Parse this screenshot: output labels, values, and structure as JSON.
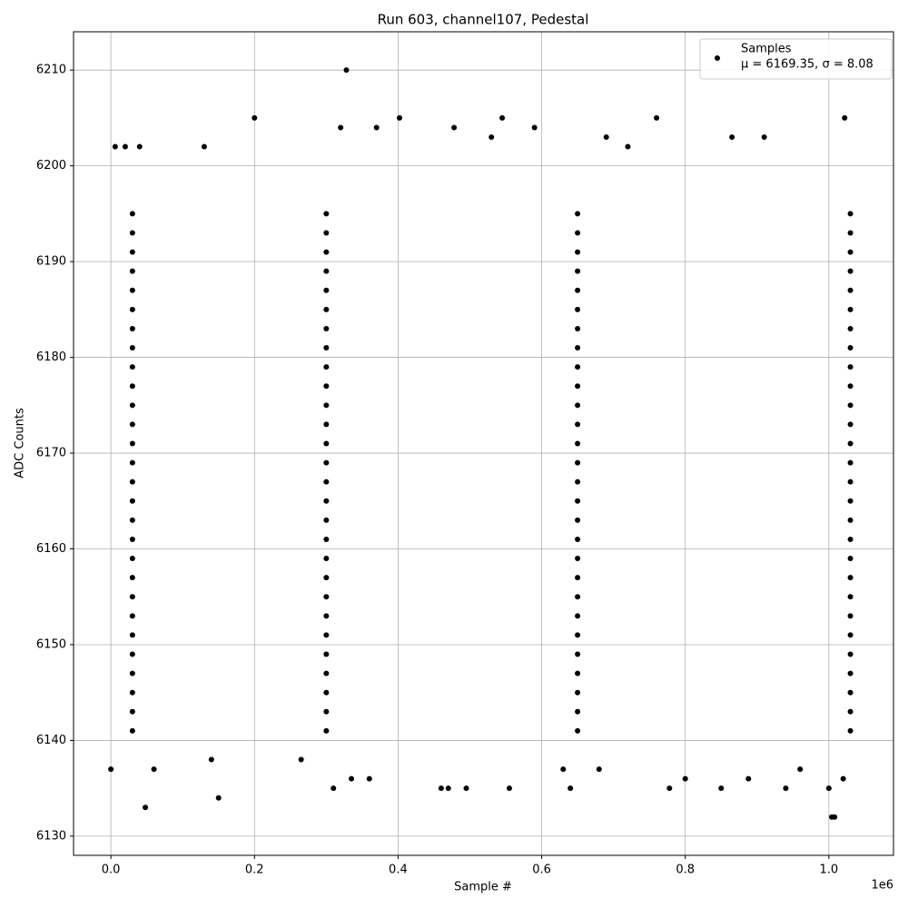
{
  "chart_data": {
    "type": "scatter",
    "title": "Run 603, channel107, Pedestal",
    "x_label": "Sample #",
    "y_label": "ADC Counts",
    "x_offset_label": "1e6",
    "xlim": [
      -52000,
      1090000
    ],
    "ylim": [
      6128,
      6214
    ],
    "xticks": [
      {
        "value": 0,
        "label": "0.0"
      },
      {
        "value": 200000,
        "label": "0.2"
      },
      {
        "value": 400000,
        "label": "0.4"
      },
      {
        "value": 600000,
        "label": "0.6"
      },
      {
        "value": 800000,
        "label": "0.8"
      },
      {
        "value": 1000000,
        "label": "1.0"
      }
    ],
    "yticks": [
      6130,
      6140,
      6150,
      6160,
      6170,
      6180,
      6190,
      6200,
      6210
    ],
    "grid": true,
    "legend": "upper right",
    "legend_note": "μ = 6169.35, σ = 8.08",
    "series": [
      {
        "name": "Samples",
        "color": "#000000",
        "x": [
          30000,
          30000,
          30000,
          30000,
          30000,
          30000,
          30000,
          30000,
          30000,
          30000,
          30000,
          30000,
          30000,
          30000,
          30000,
          30000,
          30000,
          30000,
          30000,
          30000,
          30000,
          30000,
          30000,
          30000,
          30000,
          30000,
          30000,
          30000,
          300000,
          300000,
          300000,
          300000,
          300000,
          300000,
          300000,
          300000,
          300000,
          300000,
          300000,
          300000,
          300000,
          300000,
          300000,
          300000,
          300000,
          300000,
          300000,
          300000,
          300000,
          300000,
          300000,
          300000,
          300000,
          300000,
          300000,
          300000,
          650000,
          650000,
          650000,
          650000,
          650000,
          650000,
          650000,
          650000,
          650000,
          650000,
          650000,
          650000,
          650000,
          650000,
          650000,
          650000,
          650000,
          650000,
          650000,
          650000,
          650000,
          650000,
          650000,
          650000,
          650000,
          650000,
          650000,
          650000,
          1030000,
          1030000,
          1030000,
          1030000,
          1030000,
          1030000,
          1030000,
          1030000,
          1030000,
          1030000,
          1030000,
          1030000,
          1030000,
          1030000,
          1030000,
          1030000,
          1030000,
          1030000,
          1030000,
          1030000,
          1030000,
          1030000,
          1030000,
          1030000,
          1030000,
          1030000,
          1030000,
          1030000,
          0,
          6000,
          48000,
          150000,
          200000,
          310000,
          328000,
          335000,
          360000,
          402000,
          460000,
          470000,
          478000,
          495000,
          545000,
          555000,
          590000,
          640000,
          690000,
          760000,
          778000,
          800000,
          850000,
          865000,
          888000,
          910000,
          940000,
          1000000,
          1004000,
          1008000,
          1022000,
          1020000,
          265000,
          130000,
          320000,
          370000,
          140000,
          60000,
          630000,
          680000,
          960000,
          20000,
          40000,
          530000,
          720000
        ],
        "values": [
          6141,
          6143,
          6145,
          6147,
          6149,
          6151,
          6153,
          6155,
          6157,
          6159,
          6161,
          6163,
          6165,
          6167,
          6169,
          6171,
          6173,
          6175,
          6177,
          6179,
          6181,
          6183,
          6185,
          6187,
          6189,
          6191,
          6193,
          6195,
          6141,
          6143,
          6145,
          6147,
          6149,
          6151,
          6153,
          6155,
          6157,
          6159,
          6161,
          6163,
          6165,
          6167,
          6169,
          6171,
          6173,
          6175,
          6177,
          6179,
          6181,
          6183,
          6185,
          6187,
          6189,
          6191,
          6193,
          6195,
          6141,
          6143,
          6145,
          6147,
          6149,
          6151,
          6153,
          6155,
          6157,
          6159,
          6161,
          6163,
          6165,
          6167,
          6169,
          6171,
          6173,
          6175,
          6177,
          6179,
          6181,
          6183,
          6185,
          6187,
          6189,
          6191,
          6193,
          6195,
          6141,
          6143,
          6145,
          6147,
          6149,
          6151,
          6153,
          6155,
          6157,
          6159,
          6161,
          6163,
          6165,
          6167,
          6169,
          6171,
          6173,
          6175,
          6177,
          6179,
          6181,
          6183,
          6185,
          6187,
          6189,
          6191,
          6193,
          6195,
          6137,
          6202,
          6133,
          6134,
          6205,
          6135,
          6210,
          6136,
          6136,
          6205,
          6135,
          6135,
          6204,
          6135,
          6205,
          6135,
          6204,
          6135,
          6203,
          6205,
          6135,
          6136,
          6135,
          6203,
          6136,
          6203,
          6135,
          6135,
          6132,
          6132,
          6205,
          6136,
          6138,
          6202,
          6204,
          6204,
          6138,
          6137,
          6137,
          6137,
          6137,
          6202,
          6202,
          6203,
          6202
        ]
      }
    ]
  }
}
